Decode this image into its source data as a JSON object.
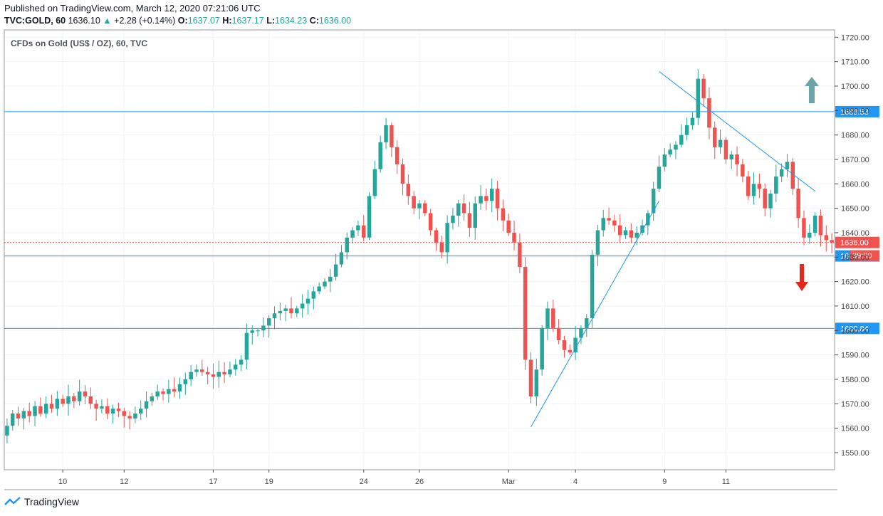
{
  "header": {
    "published": "Published on TradingView.com, March 12, 2020 07:21:06 UTC",
    "symbol": "TVC:GOLD, 60",
    "last": "1636.10",
    "arrow": "▲",
    "change": "+2.28 (+0.14%)",
    "open_label": "O:",
    "open": "1637.07",
    "high_label": "H:",
    "high": "1637.17",
    "low_label": "L:",
    "low": "1634.23",
    "close_label": "C:",
    "close": "1636.00"
  },
  "footer": {
    "brand": "TradingView"
  },
  "colors": {
    "up": "#26a69a",
    "down": "#ef5350",
    "line": "#2196f3",
    "grid": "#f0f3fa",
    "axis": "#4a4a4a"
  },
  "chart_data": {
    "type": "candlestick",
    "title": "CFDs on Gold (US$ / OZ), 60, TVC",
    "ylim": [
      1543,
      1723
    ],
    "yticks": [
      1550,
      1560,
      1570,
      1580,
      1590,
      1600,
      1610,
      1620,
      1630,
      1640,
      1650,
      1660,
      1670,
      1680,
      1690,
      1700,
      1710,
      1720
    ],
    "xticks": [
      {
        "label": "10",
        "bar": 10
      },
      {
        "label": "12",
        "bar": 21
      },
      {
        "label": "17",
        "bar": 37
      },
      {
        "label": "19",
        "bar": 47
      },
      {
        "label": "24",
        "bar": 64
      },
      {
        "label": "26",
        "bar": 74
      },
      {
        "label": "Mar",
        "bar": 90
      },
      {
        "label": "4",
        "bar": 102
      },
      {
        "label": "9",
        "bar": 118
      },
      {
        "label": "11",
        "bar": 129
      }
    ],
    "series_close": [
      1561,
      1566,
      1564,
      1567,
      1565,
      1569,
      1566,
      1570,
      1568,
      1572,
      1570,
      1573,
      1571,
      1575,
      1573,
      1570,
      1568,
      1569,
      1566,
      1568,
      1567,
      1565,
      1564,
      1566,
      1568,
      1571,
      1573,
      1575,
      1574,
      1576,
      1575,
      1578,
      1580,
      1583,
      1584,
      1583,
      1582,
      1581,
      1583,
      1582,
      1584,
      1586,
      1588,
      1599,
      1600,
      1600,
      1602,
      1605,
      1607,
      1608,
      1609,
      1607,
      1609,
      1611,
      1613,
      1616,
      1618,
      1620,
      1622,
      1627,
      1632,
      1638,
      1641,
      1643,
      1638,
      1655,
      1666,
      1677,
      1684,
      1675,
      1668,
      1660,
      1655,
      1650,
      1652,
      1648,
      1641,
      1636,
      1632,
      1644,
      1647,
      1652,
      1648,
      1642,
      1652,
      1655,
      1653,
      1658,
      1650,
      1645,
      1640,
      1636,
      1626,
      1588,
      1573,
      1584,
      1601,
      1609,
      1601,
      1596,
      1592,
      1591,
      1597,
      1601,
      1605,
      1631,
      1641,
      1646,
      1645,
      1643,
      1639,
      1641,
      1638,
      1640,
      1643,
      1648,
      1658,
      1667,
      1672,
      1674,
      1676,
      1680,
      1684,
      1687,
      1703,
      1695,
      1683,
      1675,
      1678,
      1670,
      1672,
      1668,
      1663,
      1655,
      1660,
      1658,
      1650,
      1656,
      1663,
      1666,
      1669,
      1658,
      1646,
      1638,
      1640,
      1647,
      1639,
      1637,
      1636
    ],
    "horizontal_levels": [
      {
        "value": 1689.53,
        "label": "1689.53"
      },
      {
        "value": 1630.5,
        "label": "1630.50"
      },
      {
        "value": 1600.84,
        "label": "1600.84"
      }
    ],
    "current_price": {
      "value": 1636.0,
      "label": "1636.00",
      "countdown": "39:00"
    },
    "trendlines": [
      {
        "from": [
          1560.5,
          94
        ],
        "to": [
          1653,
          117
        ]
      },
      {
        "from": [
          1706,
          117
        ],
        "to": [
          1657,
          145
        ]
      }
    ],
    "annotations": [
      {
        "type": "arrow-up",
        "color": "#6aa4a7"
      },
      {
        "type": "arrow-down",
        "color": "#e3281c"
      }
    ]
  }
}
